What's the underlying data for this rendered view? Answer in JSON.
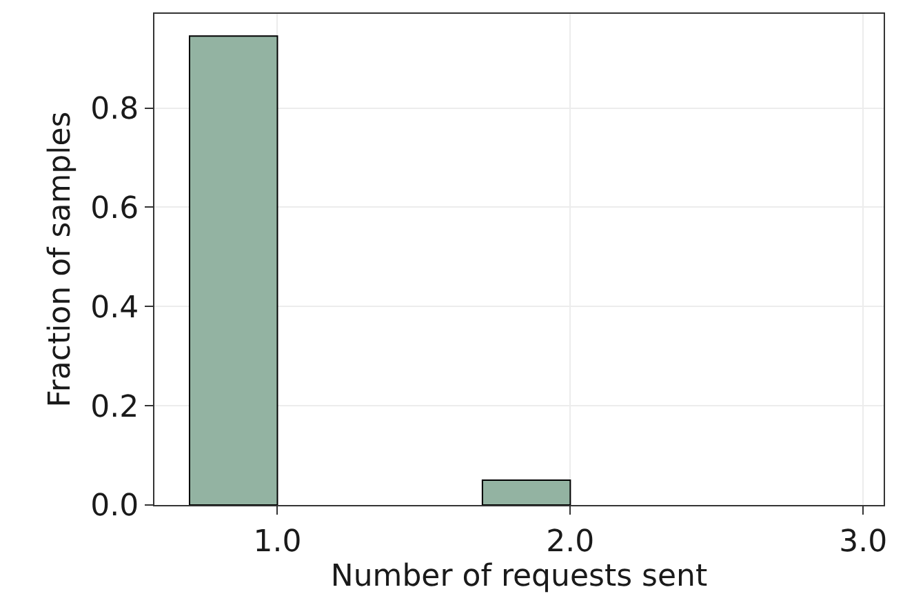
{
  "chart_data": {
    "type": "histogram",
    "xlabel": "Number of requests sent",
    "ylabel": "Fraction of samples",
    "bins": [
      0.7,
      1.0,
      1.7,
      2.0
    ],
    "values": [
      0.945,
      0,
      0.05
    ],
    "color": "#93b3a2",
    "xlim": [
      0.58,
      3.07
    ],
    "xticks": [
      {
        "value": 1,
        "label": "1.0"
      },
      {
        "value": 2,
        "label": "2.0"
      },
      {
        "value": 3,
        "label": "3.0"
      }
    ],
    "ylim": [
      0,
      0.99
    ],
    "yticks": [
      {
        "value": 0,
        "label": "0.0"
      },
      {
        "value": 0.2,
        "label": "0.2"
      },
      {
        "value": 0.4,
        "label": "0.4"
      },
      {
        "value": 0.6,
        "label": "0.6"
      },
      {
        "value": 0.8,
        "label": "0.8"
      }
    ],
    "grid": true
  }
}
